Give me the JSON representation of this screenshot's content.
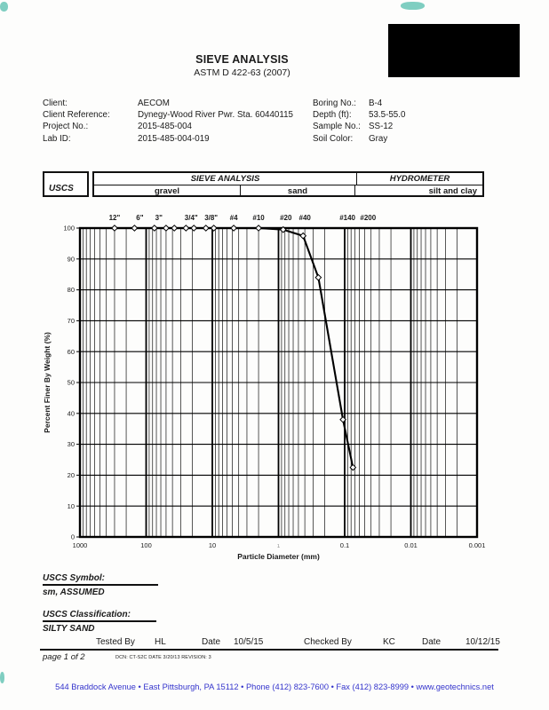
{
  "title": "SIEVE ANALYSIS",
  "subtitle": "ASTM D 422-63 (2007)",
  "info": {
    "left": [
      {
        "label": "Client:",
        "value": "AECOM"
      },
      {
        "label": "Client Reference:",
        "value": "Dynegy-Wood River Pwr. Sta. 60440115"
      },
      {
        "label": "Project No.:",
        "value": "2015-485-004"
      },
      {
        "label": "Lab ID:",
        "value": "2015-485-004-019"
      }
    ],
    "right": [
      {
        "label": "Boring No.:",
        "value": "B-4"
      },
      {
        "label": "Depth (ft):",
        "value": "53.5-55.0"
      },
      {
        "label": "Sample No.:",
        "value": "SS-12"
      },
      {
        "label": "Soil Color:",
        "value": "Gray"
      }
    ]
  },
  "classification_table": {
    "uscs": "USCS",
    "sieve_analysis": "SIEVE ANALYSIS",
    "hydrometer": "HYDROMETER",
    "gravel": "gravel",
    "sand": "sand",
    "silt_and_clay": "silt and clay"
  },
  "chart_data": {
    "type": "line",
    "title": "",
    "xlabel": "Particle Diameter (mm)",
    "ylabel": "Percent Finer By Weight (%)",
    "x_scale": "log",
    "xlim": [
      1000,
      0.001
    ],
    "ylim": [
      0,
      100
    ],
    "grid": true,
    "x_ticks": [
      {
        "label": "1000",
        "value": 1000
      },
      {
        "label": "100",
        "value": 100
      },
      {
        "label": "10",
        "value": 10
      },
      {
        "label": "1",
        "value": 1,
        "faint": true
      },
      {
        "label": "0.1",
        "value": 0.1
      },
      {
        "label": "0.01",
        "value": 0.01
      },
      {
        "label": "0.001",
        "value": 0.001
      }
    ],
    "y_ticks": [
      0,
      10,
      20,
      30,
      40,
      50,
      60,
      70,
      80,
      90,
      100
    ],
    "sieve_marks": [
      {
        "label": "12\"",
        "d": 300,
        "dx": 0
      },
      {
        "label": "6\"",
        "d": 150,
        "dx": 6
      },
      {
        "label": "3\"",
        "d": 75,
        "dx": 5
      },
      {
        "label": "3/4\"",
        "d": 19,
        "dx": -3
      },
      {
        "label": "3/8\"",
        "d": 9.5,
        "dx": -3
      },
      {
        "label": "#4",
        "d": 4.75,
        "dx": 0
      },
      {
        "label": "#10",
        "d": 2,
        "dx": 0
      },
      {
        "label": "#20",
        "d": 0.85,
        "dx": 3
      },
      {
        "label": "#40",
        "d": 0.425,
        "dx": 2
      },
      {
        "label": "#140",
        "d": 0.106,
        "dx": 5
      },
      {
        "label": "#200",
        "d": 0.075,
        "dx": 17
      }
    ],
    "series": [
      {
        "name": "grain-size-distribution",
        "points": [
          [
            300,
            100
          ],
          [
            150,
            100
          ],
          [
            75,
            100
          ],
          [
            50,
            100
          ],
          [
            37.5,
            100
          ],
          [
            25,
            100
          ],
          [
            19,
            100
          ],
          [
            12.5,
            100
          ],
          [
            9.5,
            100
          ],
          [
            4.75,
            100
          ],
          [
            2,
            100
          ],
          [
            0.85,
            99.5
          ],
          [
            0.425,
            97.5
          ],
          [
            0.25,
            84
          ],
          [
            0.106,
            38
          ],
          [
            0.075,
            22.5
          ]
        ]
      }
    ]
  },
  "uscs_symbol": {
    "heading": "USCS Symbol:",
    "value": "sm, ASSUMED"
  },
  "uscs_classification": {
    "heading": "USCS Classification:",
    "value": "SILTY SAND"
  },
  "signoff": {
    "tested_by_label": "Tested By",
    "tested_by": "HL",
    "date1_label": "Date",
    "date1": "10/5/15",
    "checked_by_label": "Checked By",
    "checked_by": "KC",
    "date2_label": "Date",
    "date2": "10/12/15"
  },
  "page_note": "page 1 of 2",
  "dcn_note": "DCN: CT-S2C DATE 3/20/13   REVISION: 3",
  "footer": {
    "text": "544 Braddock Avenue  •  East Pittsburgh, PA  15112  •  Phone  (412) 823-7600  •  Fax (412) 823-8999  •  www.geotechnics.net",
    "color": "#3434cc"
  },
  "colors": {
    "ink": "#1a1a1a",
    "grid_minor": "#2e2e2e",
    "grid_major": "#000000",
    "curve": "#000000",
    "artifact_teal": "#18a890",
    "redaction": "#000000"
  }
}
